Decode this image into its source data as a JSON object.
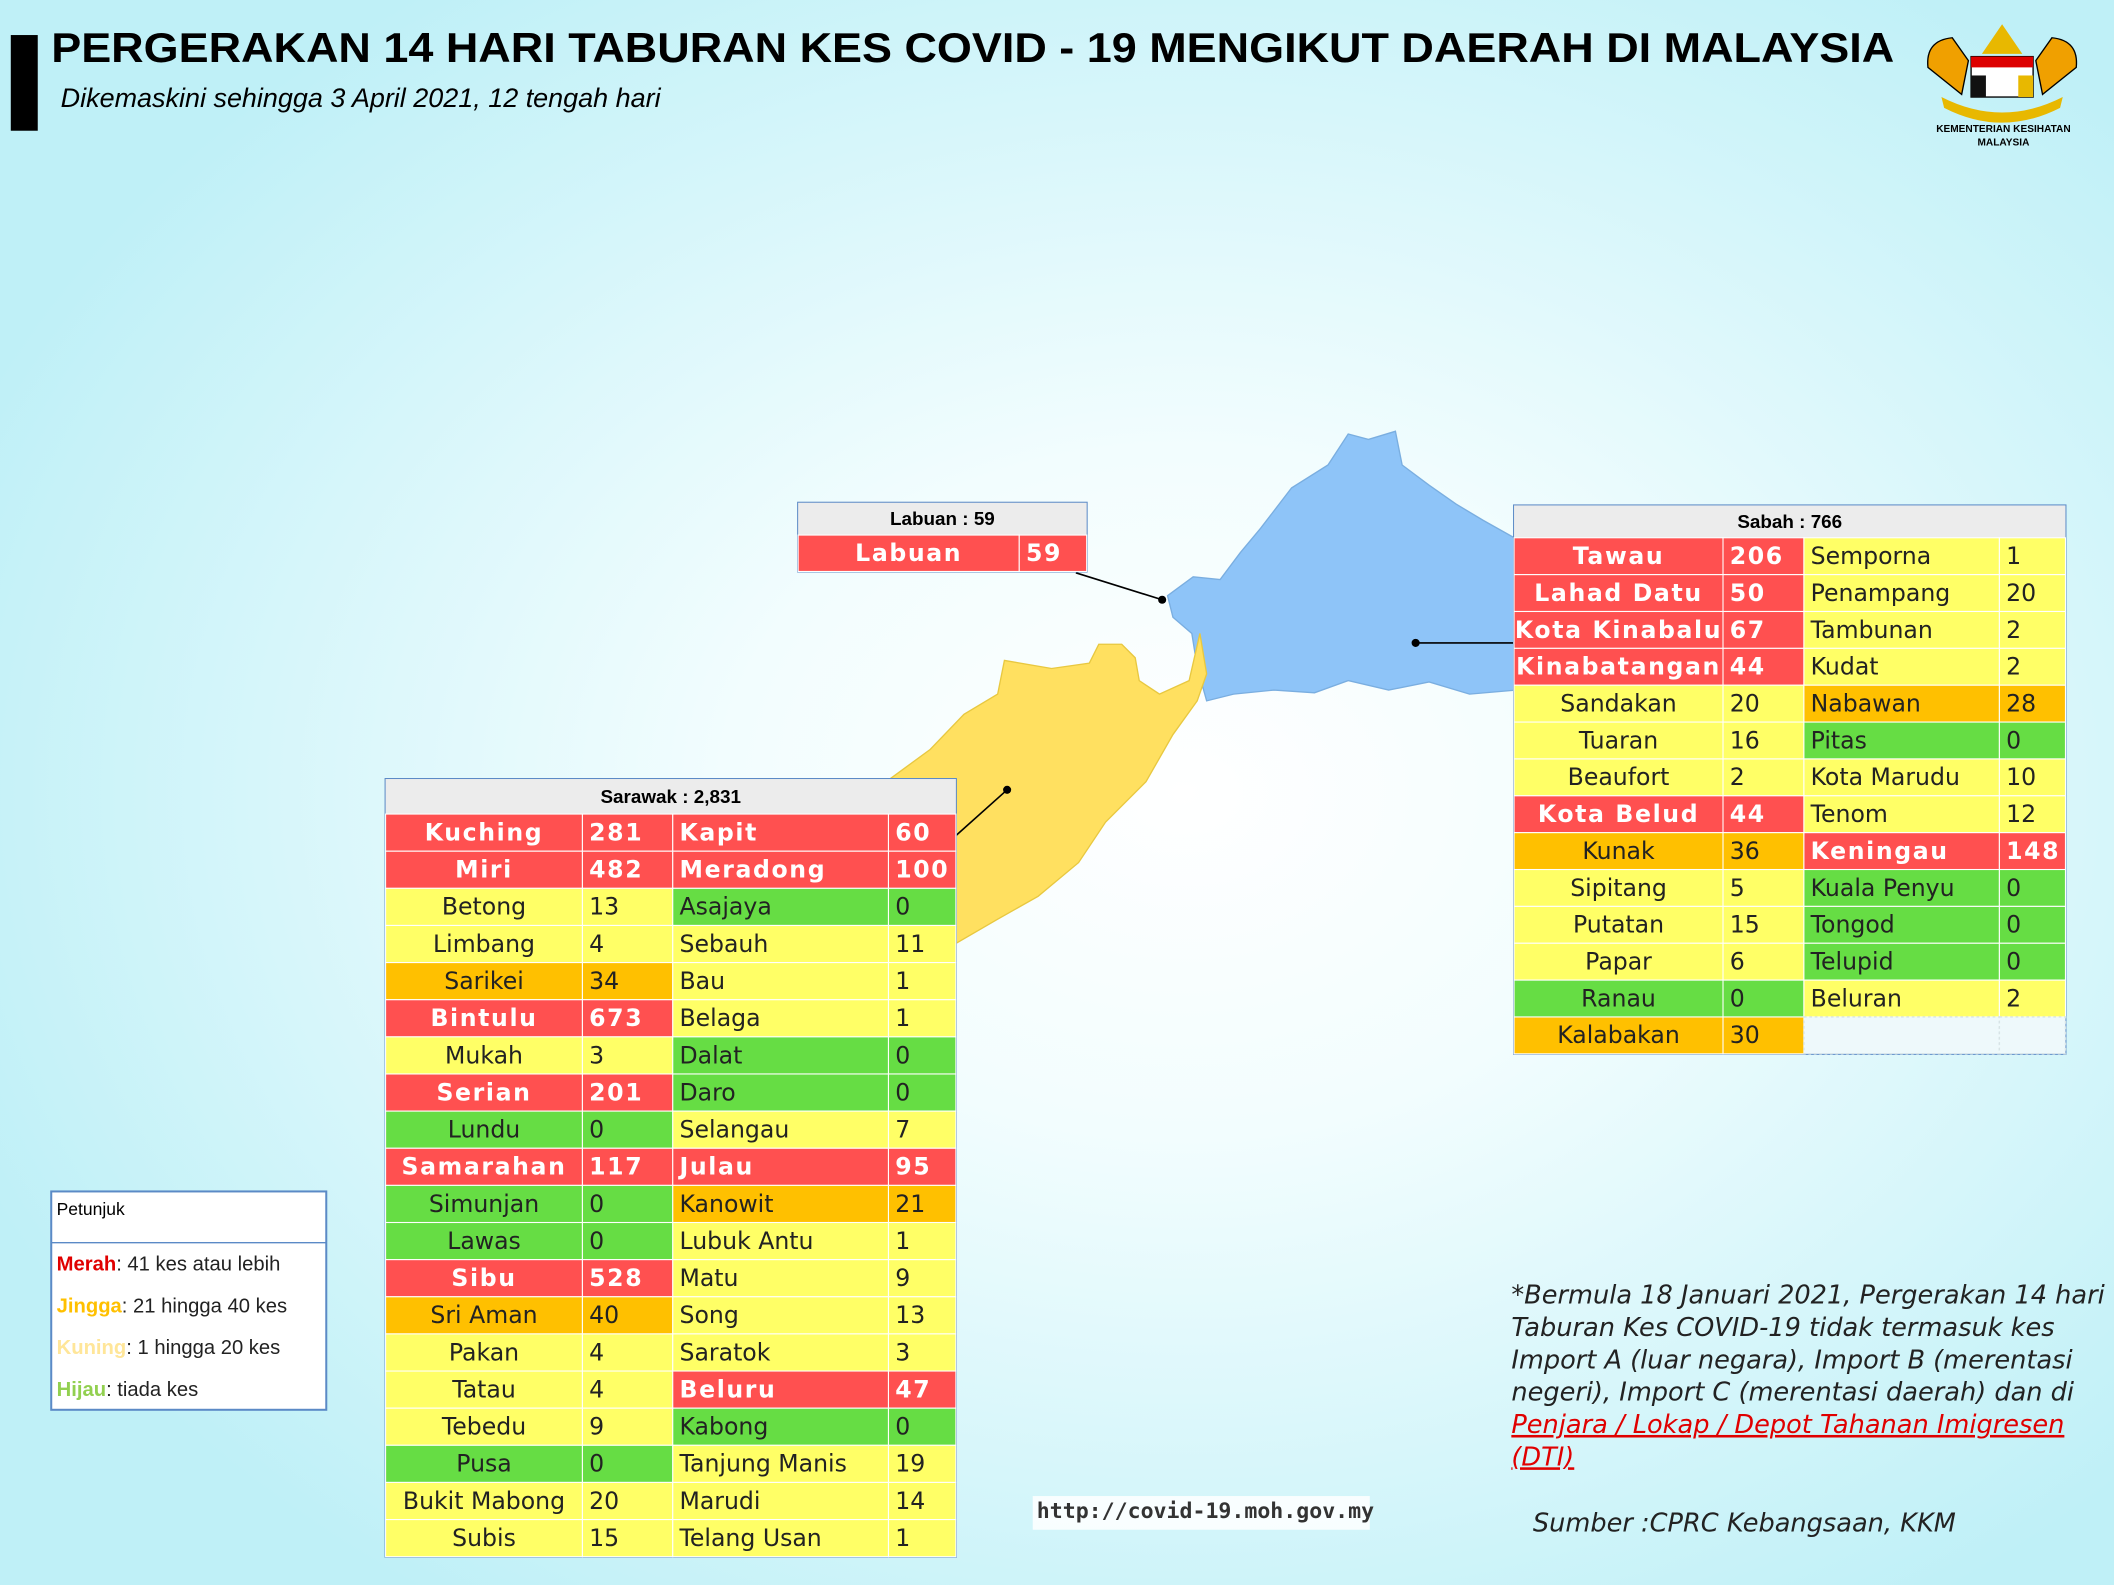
{
  "header": {
    "title": "PERGERAKAN 14 HARI TABURAN KES COVID - 19 MENGIKUT DAERAH DI MALAYSIA",
    "subtitle": "Dikemaskini sehingga 3 April 2021, 12 tengah hari"
  },
  "logo": {
    "lines": [
      "KEMENTERIAN KESIHATAN",
      "MALAYSIA"
    ]
  },
  "tables": [
    {
      "title": "Labuan : 59",
      "rows": [
        [
          {
            "name": "Labuan",
            "cases": 59,
            "fill": "#ff5050"
          }
        ]
      ]
    },
    {
      "title": "Sabah : 766",
      "rows": [
        [
          {
            "name": "Tawau",
            "cases": 206,
            "fill": "#ff5050"
          },
          {
            "name": "Semporna",
            "cases": 1,
            "fill": "#ffff66"
          }
        ],
        [
          {
            "name": "Lahad Datu",
            "cases": 50,
            "fill": "#ff5050"
          },
          {
            "name": "Penampang",
            "cases": 20,
            "fill": "#ffff66"
          }
        ],
        [
          {
            "name": "Kota Kinabalu",
            "cases": 67,
            "fill": "#ff5050"
          },
          {
            "name": "Tambunan",
            "cases": 2,
            "fill": "#ffff66"
          }
        ],
        [
          {
            "name": "Kinabatangan",
            "cases": 44,
            "fill": "#ff5050"
          },
          {
            "name": "Kudat",
            "cases": 2,
            "fill": "#ffff66"
          }
        ],
        [
          {
            "name": "Sandakan",
            "cases": 20,
            "fill": "#ffff66"
          },
          {
            "name": "Nabawan",
            "cases": 28,
            "fill": "#ffc000"
          }
        ],
        [
          {
            "name": "Tuaran",
            "cases": 16,
            "fill": "#ffff66"
          },
          {
            "name": "Pitas",
            "cases": 0,
            "fill": "#66dd44"
          }
        ],
        [
          {
            "name": "Beaufort",
            "cases": 2,
            "fill": "#ffff66"
          },
          {
            "name": "Kota Marudu",
            "cases": 10,
            "fill": "#ffff66"
          }
        ],
        [
          {
            "name": "Kota Belud",
            "cases": 44,
            "fill": "#ff5050"
          },
          {
            "name": "Tenom",
            "cases": 12,
            "fill": "#ffff66"
          }
        ],
        [
          {
            "name": "Kunak",
            "cases": 36,
            "fill": "#ffc000"
          },
          {
            "name": "Keningau",
            "cases": 148,
            "fill": "#ff5050"
          }
        ],
        [
          {
            "name": "Sipitang",
            "cases": 5,
            "fill": "#ffff66"
          },
          {
            "name": "Kuala Penyu",
            "cases": 0,
            "fill": "#66dd44"
          }
        ],
        [
          {
            "name": "Putatan",
            "cases": 15,
            "fill": "#ffff66"
          },
          {
            "name": "Tongod",
            "cases": 0,
            "fill": "#66dd44"
          }
        ],
        [
          {
            "name": "Papar",
            "cases": 6,
            "fill": "#ffff66"
          },
          {
            "name": "Telupid",
            "cases": 0,
            "fill": "#66dd44"
          }
        ],
        [
          {
            "name": "Ranau",
            "cases": 0,
            "fill": "#66dd44"
          },
          {
            "name": "Beluran",
            "cases": 2,
            "fill": "#ffff66"
          }
        ],
        [
          {
            "name": "Kalabakan",
            "cases": 30,
            "fill": "#ffc000"
          }
        ]
      ]
    },
    {
      "title": "Sarawak : 2,831",
      "rows": [
        [
          {
            "name": "Kuching",
            "cases": 281,
            "fill": "#ff5050"
          },
          {
            "name": "Kapit",
            "cases": 60,
            "fill": "#ff5050"
          }
        ],
        [
          {
            "name": "Miri",
            "cases": 482,
            "fill": "#ff5050"
          },
          {
            "name": "Meradong",
            "cases": 100,
            "fill": "#ff5050"
          }
        ],
        [
          {
            "name": "Betong",
            "cases": 13,
            "fill": "#ffff66"
          },
          {
            "name": "Asajaya",
            "cases": 0,
            "fill": "#66dd44"
          }
        ],
        [
          {
            "name": "Limbang",
            "cases": 4,
            "fill": "#ffff66"
          },
          {
            "name": "Sebauh",
            "cases": 11,
            "fill": "#ffff66"
          }
        ],
        [
          {
            "name": "Sarikei",
            "cases": 34,
            "fill": "#ffc000"
          },
          {
            "name": "Bau",
            "cases": 1,
            "fill": "#ffff66"
          }
        ],
        [
          {
            "name": "Bintulu",
            "cases": 673,
            "fill": "#ff5050"
          },
          {
            "name": "Belaga",
            "cases": 1,
            "fill": "#ffff66"
          }
        ],
        [
          {
            "name": "Mukah",
            "cases": 3,
            "fill": "#ffff66"
          },
          {
            "name": "Dalat",
            "cases": 0,
            "fill": "#66dd44"
          }
        ],
        [
          {
            "name": "Serian",
            "cases": 201,
            "fill": "#ff5050"
          },
          {
            "name": "Daro",
            "cases": 0,
            "fill": "#66dd44"
          }
        ],
        [
          {
            "name": "Lundu",
            "cases": 0,
            "fill": "#66dd44"
          },
          {
            "name": "Selangau",
            "cases": 7,
            "fill": "#ffff66"
          }
        ],
        [
          {
            "name": "Samarahan",
            "cases": 117,
            "fill": "#ff5050"
          },
          {
            "name": "Julau",
            "cases": 95,
            "fill": "#ff5050"
          }
        ],
        [
          {
            "name": "Simunjan",
            "cases": 0,
            "fill": "#66dd44"
          },
          {
            "name": "Kanowit",
            "cases": 21,
            "fill": "#ffc000"
          }
        ],
        [
          {
            "name": "Lawas",
            "cases": 0,
            "fill": "#66dd44"
          },
          {
            "name": "Lubuk Antu",
            "cases": 1,
            "fill": "#ffff66"
          }
        ],
        [
          {
            "name": "Sibu",
            "cases": 528,
            "fill": "#ff5050"
          },
          {
            "name": "Matu",
            "cases": 9,
            "fill": "#ffff66"
          }
        ],
        [
          {
            "name": "Sri Aman",
            "cases": 40,
            "fill": "#ffc000"
          },
          {
            "name": "Song",
            "cases": 13,
            "fill": "#ffff66"
          }
        ],
        [
          {
            "name": "Pakan",
            "cases": 4,
            "fill": "#ffff66"
          },
          {
            "name": "Saratok",
            "cases": 3,
            "fill": "#ffff66"
          }
        ],
        [
          {
            "name": "Tatau",
            "cases": 4,
            "fill": "#ffff66"
          },
          {
            "name": "Beluru",
            "cases": 47,
            "fill": "#ff5050"
          }
        ],
        [
          {
            "name": "Tebedu",
            "cases": 9,
            "fill": "#ffff66"
          },
          {
            "name": "Kabong",
            "cases": 0,
            "fill": "#66dd44"
          }
        ],
        [
          {
            "name": "Pusa",
            "cases": 0,
            "fill": "#66dd44"
          },
          {
            "name": "Tanjung Manis",
            "cases": 19,
            "fill": "#ffff66"
          }
        ],
        [
          {
            "name": "Bukit Mabong",
            "cases": 20,
            "fill": "#ffff66"
          },
          {
            "name": "Marudi",
            "cases": 14,
            "fill": "#ffff66"
          }
        ],
        [
          {
            "name": "Subis",
            "cases": 15,
            "fill": "#ffff66"
          },
          {
            "name": "Telang Usan",
            "cases": 1,
            "fill": "#ffff66"
          }
        ]
      ]
    }
  ],
  "legend": {
    "title": "Petunjuk",
    "items": [
      {
        "label": "Merah",
        "text": ": 41 kes atau lebih",
        "color": "#e00000"
      },
      {
        "label": "Jingga",
        "text": ": 21 hingga 40 kes",
        "color": "#ffc000"
      },
      {
        "label": "Kuning",
        "text": ": 1 hingga 20 kes",
        "color": "#ffe699"
      },
      {
        "label": "Hijau",
        "text": ": tiada kes",
        "color": "#92d050"
      }
    ]
  },
  "note": {
    "lines": [
      "*Bermula 18 Januari 2021, Pergerakan 14 hari",
      "Taburan Kes COVID-19 tidak termasuk kes",
      "Import A (luar negara), Import B (merentasi",
      "negeri), Import C (merentasi daerah) dan di"
    ],
    "link": [
      "Penjara / Lokap / Depot Tahanan Imigresen",
      "(DTI)"
    ],
    "source": "Sumber :CPRC Kebangsaan,  KKM"
  },
  "url": "http://covid-19.moh.gov.my"
}
